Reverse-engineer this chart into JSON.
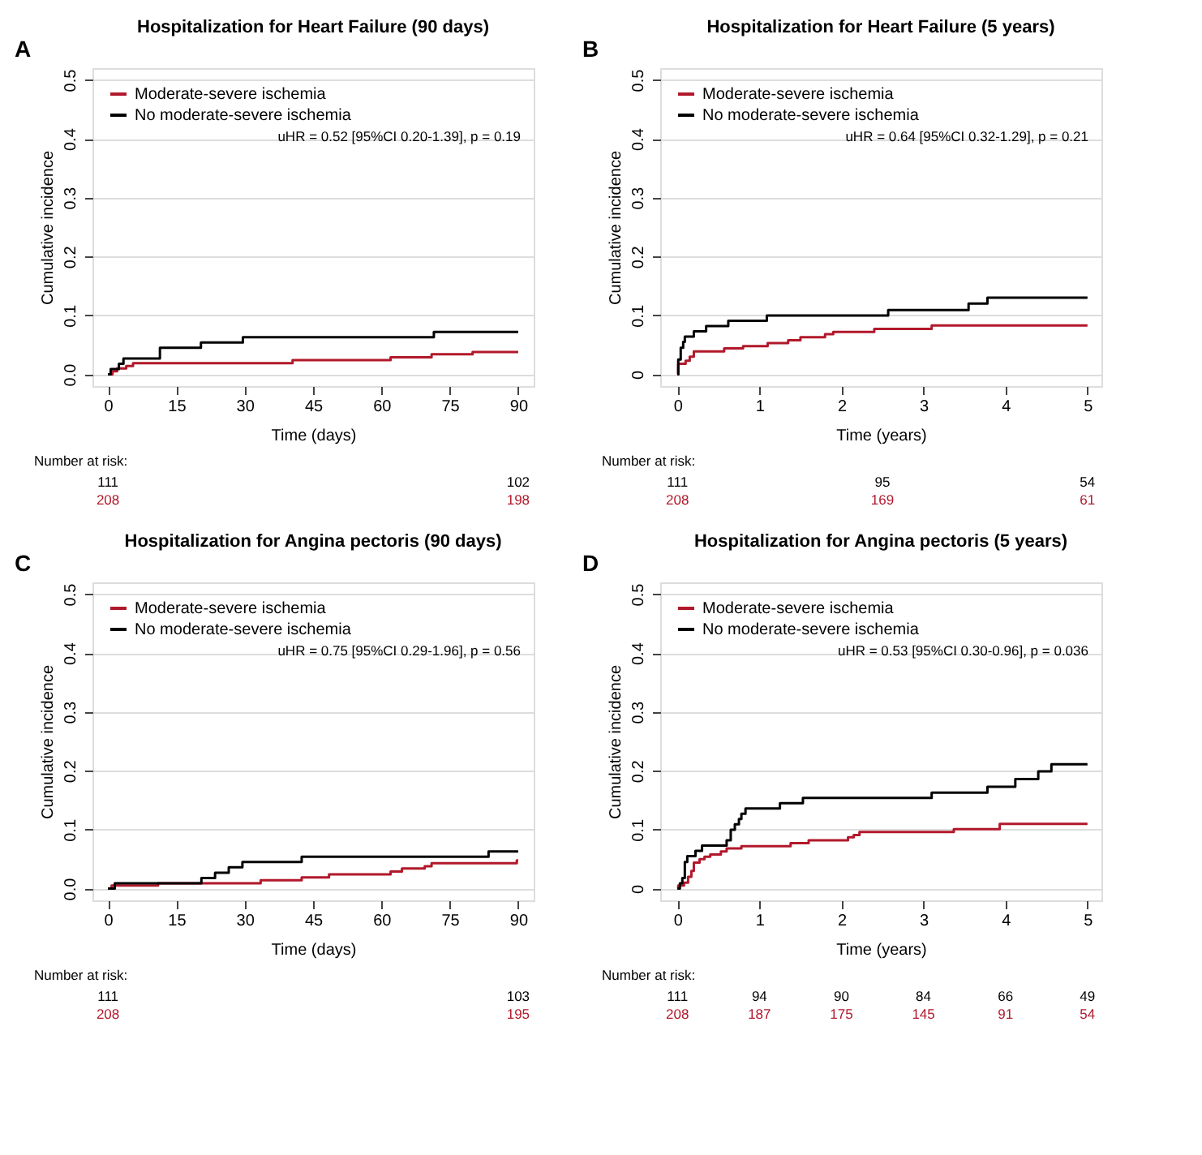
{
  "chart_data": [
    {
      "type": "step",
      "title": "Hospitalization for Heart Failure (90 days)",
      "xlabel": "Time (days)",
      "ylabel": "Cumulative incidence",
      "series": [
        {
          "name": "Moderate-severe ischemia",
          "color": "#b2182b",
          "x": [
            0,
            1,
            2,
            4,
            5.5,
            40.5,
            62,
            71,
            80,
            90
          ],
          "values": [
            0,
            0.005,
            0.01,
            0.014,
            0.019,
            0.024,
            0.029,
            0.034,
            0.038,
            0.038
          ]
        },
        {
          "name": "No moderate-severe ischemia",
          "color": "#000000",
          "x": [
            0,
            0.6,
            2.4,
            3.4,
            11.4,
            20.4,
            29.6,
            71.5,
            90
          ],
          "values": [
            0,
            0.009,
            0.018,
            0.027,
            0.045,
            0.054,
            0.063,
            0.072,
            0.072
          ]
        }
      ],
      "xlim": [
        -3.4,
        93.4
      ],
      "xticks": [
        0,
        15,
        30,
        45,
        60,
        75,
        90
      ],
      "ylim": [
        -0.02,
        0.52
      ],
      "yticks": [
        {
          "value": 0,
          "label": "0.0"
        },
        0.1,
        0.2,
        0.3,
        0.4,
        0.5
      ],
      "grid": "y",
      "legend": "top left",
      "annotations": [
        "A",
        "uHR = 0.52 [95%CI 0.20-1.39], p = 0.19",
        "Number at risk:",
        "111",
        "102",
        "208",
        "198"
      ]
    },
    {
      "type": "step",
      "title": "Hospitalization for Heart Failure (5 years)",
      "xlabel": "Time (years)",
      "ylabel": "Cumulative incidence",
      "series": [
        {
          "name": "Moderate-severe ischemia",
          "color": "#b2182b",
          "x": [
            0,
            0.01,
            0.1,
            0.15,
            0.2,
            0.57,
            0.8,
            1.1,
            1.35,
            1.5,
            1.8,
            1.9,
            2.4,
            3.1,
            5
          ],
          "values": [
            0,
            0.018,
            0.023,
            0.03,
            0.039,
            0.044,
            0.048,
            0.053,
            0.058,
            0.063,
            0.068,
            0.072,
            0.077,
            0.083,
            0.083
          ]
        },
        {
          "name": "No moderate-severe ischemia",
          "color": "#000000",
          "x": [
            0,
            0.01,
            0.04,
            0.07,
            0.09,
            0.2,
            0.35,
            0.62,
            1.09,
            2.57,
            3.55,
            3.78,
            5
          ],
          "values": [
            0,
            0.025,
            0.045,
            0.055,
            0.064,
            0.073,
            0.082,
            0.091,
            0.1,
            0.109,
            0.12,
            0.13,
            0.13
          ]
        }
      ],
      "xlim": [
        -0.21,
        5.17
      ],
      "xticks": [
        0,
        1,
        2,
        3,
        4,
        5
      ],
      "ylim": [
        -0.02,
        0.52
      ],
      "yticks": [
        0,
        0.1,
        0.2,
        0.3,
        0.4,
        0.5
      ],
      "grid": "y",
      "legend": "top left",
      "annotations": [
        "B",
        "uHR = 0.64 [95%CI 0.32-1.29], p = 0.21",
        "Number at risk:",
        "111",
        "95",
        "54",
        "208",
        "169",
        "61"
      ]
    },
    {
      "type": "step",
      "title": "Hospitalization for Angina pectoris (90 days)",
      "xlabel": "Time (days)",
      "ylabel": "Cumulative incidence",
      "series": [
        {
          "name": "Moderate-severe ischemia",
          "color": "#b2182b",
          "x": [
            0,
            0.8,
            11,
            33.5,
            42.5,
            48.5,
            62,
            64.5,
            69.5,
            71,
            89.7,
            90
          ],
          "values": [
            0,
            0.005,
            0.009,
            0.014,
            0.019,
            0.024,
            0.029,
            0.034,
            0.038,
            0.043,
            0.048,
            0.048
          ]
        },
        {
          "name": "No moderate-severe ischemia",
          "color": "#000000",
          "x": [
            0,
            1.5,
            20.5,
            23.5,
            26.5,
            29.5,
            42.5,
            83.5,
            90
          ],
          "values": [
            0,
            0.009,
            0.018,
            0.027,
            0.036,
            0.045,
            0.054,
            0.063,
            0.063
          ]
        }
      ],
      "xlim": [
        -3.4,
        93.4
      ],
      "xticks": [
        0,
        15,
        30,
        45,
        60,
        75,
        90
      ],
      "ylim": [
        -0.02,
        0.52
      ],
      "yticks": [
        {
          "value": 0,
          "label": "0.0"
        },
        0.1,
        0.2,
        0.3,
        0.4,
        0.5
      ],
      "grid": "y",
      "legend": "top left",
      "annotations": [
        "C",
        "uHR = 0.75 [95%CI 0.29-1.96], p = 0.56",
        "Number at risk:",
        "111",
        "103",
        "208",
        "195"
      ]
    },
    {
      "type": "step",
      "title": "Hospitalization for Angina pectoris (5 years)",
      "xlabel": "Time (years)",
      "ylabel": "Cumulative incidence",
      "series": [
        {
          "name": "Moderate-severe ischemia",
          "color": "#b2182b",
          "x": [
            0,
            0.01,
            0.08,
            0.13,
            0.17,
            0.2,
            0.27,
            0.33,
            0.4,
            0.53,
            0.6,
            0.78,
            1.38,
            1.6,
            2.08,
            2.15,
            2.22,
            3.37,
            3.93,
            5
          ],
          "values": [
            0,
            0.005,
            0.01,
            0.02,
            0.03,
            0.044,
            0.05,
            0.054,
            0.058,
            0.063,
            0.068,
            0.072,
            0.077,
            0.082,
            0.087,
            0.091,
            0.096,
            0.101,
            0.11,
            0.11
          ]
        },
        {
          "name": "No moderate-severe ischemia",
          "color": "#000000",
          "x": [
            0,
            0.03,
            0.06,
            0.09,
            0.12,
            0.22,
            0.3,
            0.6,
            0.65,
            0.7,
            0.75,
            0.78,
            0.83,
            1.25,
            1.53,
            3.1,
            3.78,
            4.12,
            4.4,
            4.56,
            5
          ],
          "values": [
            0,
            0.009,
            0.018,
            0.045,
            0.055,
            0.064,
            0.073,
            0.082,
            0.1,
            0.109,
            0.118,
            0.127,
            0.136,
            0.145,
            0.154,
            0.163,
            0.173,
            0.186,
            0.199,
            0.211,
            0.211
          ]
        }
      ],
      "xlim": [
        -0.21,
        5.17
      ],
      "xticks": [
        0,
        1,
        2,
        3,
        4,
        5
      ],
      "ylim": [
        -0.02,
        0.52
      ],
      "yticks": [
        0,
        0.1,
        0.2,
        0.3,
        0.4,
        0.5
      ],
      "grid": "y",
      "legend": "top left",
      "annotations": [
        "D",
        "uHR = 0.53 [95%CI 0.30-0.96], p = 0.036",
        "Number at risk:",
        "111",
        "94",
        "90",
        "84",
        "66",
        "49",
        "208",
        "187",
        "175",
        "145",
        "91",
        "54"
      ]
    }
  ]
}
